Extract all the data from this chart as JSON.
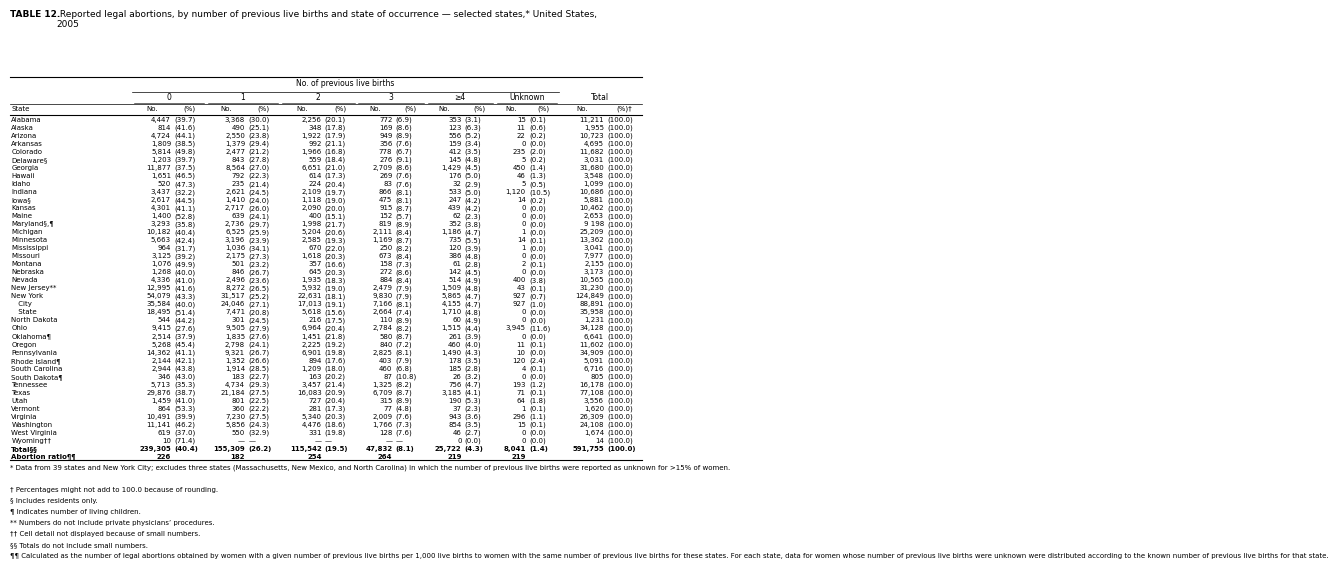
{
  "title_bold": "TABLE 12.",
  "title_rest": " Reported legal abortions, by number of previous live births and state of occurrence — selected states,* United States,\n2005",
  "col_header_top": "No. of previous live births",
  "col_groups": [
    "0",
    "1",
    "2",
    "3",
    "≥4",
    "Unknown",
    "Total"
  ],
  "sub_headers": [
    "No.",
    "(%)",
    "No.",
    "(%)",
    "No.",
    "(%)",
    "No.",
    "(%)",
    "No.",
    "(%)",
    "No.",
    "(%)",
    "No.",
    "(%)†"
  ],
  "state_col_header": "State",
  "rows": [
    [
      "Alabama",
      "4,447",
      "(39.7)",
      "3,368",
      "(30.0)",
      "2,256",
      "(20.1)",
      "772",
      "(6.9)",
      "353",
      "(3.1)",
      "15",
      "(0.1)",
      "11,211",
      "(100.0)"
    ],
    [
      "Alaska",
      "814",
      "(41.6)",
      "490",
      "(25.1)",
      "348",
      "(17.8)",
      "169",
      "(8.6)",
      "123",
      "(6.3)",
      "11",
      "(0.6)",
      "1,955",
      "(100.0)"
    ],
    [
      "Arizona",
      "4,724",
      "(44.1)",
      "2,550",
      "(23.8)",
      "1,922",
      "(17.9)",
      "949",
      "(8.9)",
      "556",
      "(5.2)",
      "22",
      "(0.2)",
      "10,723",
      "(100.0)"
    ],
    [
      "Arkansas",
      "1,809",
      "(38.5)",
      "1,379",
      "(29.4)",
      "992",
      "(21.1)",
      "356",
      "(7.6)",
      "159",
      "(3.4)",
      "0",
      "(0.0)",
      "4,695",
      "(100.0)"
    ],
    [
      "Colorado",
      "5,814",
      "(49.8)",
      "2,477",
      "(21.2)",
      "1,966",
      "(16.8)",
      "778",
      "(6.7)",
      "412",
      "(3.5)",
      "235",
      "(2.0)",
      "11,682",
      "(100.0)"
    ],
    [
      "Delaware§",
      "1,203",
      "(39.7)",
      "843",
      "(27.8)",
      "559",
      "(18.4)",
      "276",
      "(9.1)",
      "145",
      "(4.8)",
      "5",
      "(0.2)",
      "3,031",
      "(100.0)"
    ],
    [
      "Georgia",
      "11,877",
      "(37.5)",
      "8,564",
      "(27.0)",
      "6,651",
      "(21.0)",
      "2,709",
      "(8.6)",
      "1,429",
      "(4.5)",
      "450",
      "(1.4)",
      "31,680",
      "(100.0)"
    ],
    [
      "Hawaii",
      "1,651",
      "(46.5)",
      "792",
      "(22.3)",
      "614",
      "(17.3)",
      "269",
      "(7.6)",
      "176",
      "(5.0)",
      "46",
      "(1.3)",
      "3,548",
      "(100.0)"
    ],
    [
      "Idaho",
      "520",
      "(47.3)",
      "235",
      "(21.4)",
      "224",
      "(20.4)",
      "83",
      "(7.6)",
      "32",
      "(2.9)",
      "5",
      "(0.5)",
      "1,099",
      "(100.0)"
    ],
    [
      "Indiana",
      "3,437",
      "(32.2)",
      "2,621",
      "(24.5)",
      "2,109",
      "(19.7)",
      "866",
      "(8.1)",
      "533",
      "(5.0)",
      "1,120",
      "(10.5)",
      "10,686",
      "(100.0)"
    ],
    [
      "Iowa§",
      "2,617",
      "(44.5)",
      "1,410",
      "(24.0)",
      "1,118",
      "(19.0)",
      "475",
      "(8.1)",
      "247",
      "(4.2)",
      "14",
      "(0.2)",
      "5,881",
      "(100.0)"
    ],
    [
      "Kansas",
      "4,301",
      "(41.1)",
      "2,717",
      "(26.0)",
      "2,090",
      "(20.0)",
      "915",
      "(8.7)",
      "439",
      "(4.2)",
      "0",
      "(0.0)",
      "10,462",
      "(100.0)"
    ],
    [
      "Maine",
      "1,400",
      "(52.8)",
      "639",
      "(24.1)",
      "400",
      "(15.1)",
      "152",
      "(5.7)",
      "62",
      "(2.3)",
      "0",
      "(0.0)",
      "2,653",
      "(100.0)"
    ],
    [
      "Maryland§,¶",
      "3,293",
      "(35.8)",
      "2,736",
      "(29.7)",
      "1,998",
      "(21.7)",
      "819",
      "(8.9)",
      "352",
      "(3.8)",
      "0",
      "(0.0)",
      "9 198",
      "(100.0)"
    ],
    [
      "Michigan",
      "10,182",
      "(40.4)",
      "6,525",
      "(25.9)",
      "5,204",
      "(20.6)",
      "2,111",
      "(8.4)",
      "1,186",
      "(4.7)",
      "1",
      "(0.0)",
      "25,209",
      "(100.0)"
    ],
    [
      "Minnesota",
      "5,663",
      "(42.4)",
      "3,196",
      "(23.9)",
      "2,585",
      "(19.3)",
      "1,169",
      "(8.7)",
      "735",
      "(5.5)",
      "14",
      "(0.1)",
      "13,362",
      "(100.0)"
    ],
    [
      "Mississippi",
      "964",
      "(31.7)",
      "1,036",
      "(34.1)",
      "670",
      "(22.0)",
      "250",
      "(8.2)",
      "120",
      "(3.9)",
      "1",
      "(0.0)",
      "3,041",
      "(100.0)"
    ],
    [
      "Missouri",
      "3,125",
      "(39.2)",
      "2,175",
      "(27.3)",
      "1,618",
      "(20.3)",
      "673",
      "(8.4)",
      "386",
      "(4.8)",
      "0",
      "(0.0)",
      "7,977",
      "(100.0)"
    ],
    [
      "Montana",
      "1,076",
      "(49.9)",
      "501",
      "(23.2)",
      "357",
      "(16.6)",
      "158",
      "(7.3)",
      "61",
      "(2.8)",
      "2",
      "(0.1)",
      "2,155",
      "(100.0)"
    ],
    [
      "Nebraska",
      "1,268",
      "(40.0)",
      "846",
      "(26.7)",
      "645",
      "(20.3)",
      "272",
      "(8.6)",
      "142",
      "(4.5)",
      "0",
      "(0.0)",
      "3,173",
      "(100.0)"
    ],
    [
      "Nevada",
      "4,336",
      "(41.0)",
      "2,496",
      "(23.6)",
      "1,935",
      "(18.3)",
      "884",
      "(8.4)",
      "514",
      "(4.9)",
      "400",
      "(3.8)",
      "10,565",
      "(100.0)"
    ],
    [
      "New Jersey**",
      "12,995",
      "(41.6)",
      "8,272",
      "(26.5)",
      "5,932",
      "(19.0)",
      "2,479",
      "(7.9)",
      "1,509",
      "(4.8)",
      "43",
      "(0.1)",
      "31,230",
      "(100.0)"
    ],
    [
      "New York",
      "54,079",
      "(43.3)",
      "31,517",
      "(25.2)",
      "22,631",
      "(18.1)",
      "9,830",
      "(7.9)",
      "5,865",
      "(4.7)",
      "927",
      "(0.7)",
      "124,849",
      "(100.0)"
    ],
    [
      " City",
      "35,584",
      "(40.0)",
      "24,046",
      "(27.1)",
      "17,013",
      "(19.1)",
      "7,166",
      "(8.1)",
      "4,155",
      "(4.7)",
      "927",
      "(1.0)",
      "88,891",
      "(100.0)"
    ],
    [
      " State",
      "18,495",
      "(51.4)",
      "7,471",
      "(20.8)",
      "5,618",
      "(15.6)",
      "2,664",
      "(7.4)",
      "1,710",
      "(4.8)",
      "0",
      "(0.0)",
      "35,958",
      "(100.0)"
    ],
    [
      "North Dakota",
      "544",
      "(44.2)",
      "301",
      "(24.5)",
      "216",
      "(17.5)",
      "110",
      "(8.9)",
      "60",
      "(4.9)",
      "0",
      "(0.0)",
      "1,231",
      "(100.0)"
    ],
    [
      "Ohio",
      "9,415",
      "(27.6)",
      "9,505",
      "(27.9)",
      "6,964",
      "(20.4)",
      "2,784",
      "(8.2)",
      "1,515",
      "(4.4)",
      "3,945",
      "(11.6)",
      "34,128",
      "(100.0)"
    ],
    [
      "Oklahoma¶",
      "2,514",
      "(37.9)",
      "1,835",
      "(27.6)",
      "1,451",
      "(21.8)",
      "580",
      "(8.7)",
      "261",
      "(3.9)",
      "0",
      "(0.0)",
      "6,641",
      "(100.0)"
    ],
    [
      "Oregon",
      "5,268",
      "(45.4)",
      "2,798",
      "(24.1)",
      "2,225",
      "(19.2)",
      "840",
      "(7.2)",
      "460",
      "(4.0)",
      "11",
      "(0.1)",
      "11,602",
      "(100.0)"
    ],
    [
      "Pennsylvania",
      "14,362",
      "(41.1)",
      "9,321",
      "(26.7)",
      "6,901",
      "(19.8)",
      "2,825",
      "(8.1)",
      "1,490",
      "(4.3)",
      "10",
      "(0.0)",
      "34,909",
      "(100.0)"
    ],
    [
      "Rhode Island¶",
      "2,144",
      "(42.1)",
      "1,352",
      "(26.6)",
      "894",
      "(17.6)",
      "403",
      "(7.9)",
      "178",
      "(3.5)",
      "120",
      "(2.4)",
      "5,091",
      "(100.0)"
    ],
    [
      "South Carolina",
      "2,944",
      "(43.8)",
      "1,914",
      "(28.5)",
      "1,209",
      "(18.0)",
      "460",
      "(6.8)",
      "185",
      "(2.8)",
      "4",
      "(0.1)",
      "6,716",
      "(100.0)"
    ],
    [
      "South Dakota¶",
      "346",
      "(43.0)",
      "183",
      "(22.7)",
      "163",
      "(20.2)",
      "87",
      "(10.8)",
      "26",
      "(3.2)",
      "0",
      "(0.0)",
      "805",
      "(100.0)"
    ],
    [
      "Tennessee",
      "5,713",
      "(35.3)",
      "4,734",
      "(29.3)",
      "3,457",
      "(21.4)",
      "1,325",
      "(8.2)",
      "756",
      "(4.7)",
      "193",
      "(1.2)",
      "16,178",
      "(100.0)"
    ],
    [
      "Texas",
      "29,876",
      "(38.7)",
      "21,184",
      "(27.5)",
      "16,083",
      "(20.9)",
      "6,709",
      "(8.7)",
      "3,185",
      "(4.1)",
      "71",
      "(0.1)",
      "77,108",
      "(100.0)"
    ],
    [
      "Utah",
      "1,459",
      "(41.0)",
      "801",
      "(22.5)",
      "727",
      "(20.4)",
      "315",
      "(8.9)",
      "190",
      "(5.3)",
      "64",
      "(1.8)",
      "3,556",
      "(100.0)"
    ],
    [
      "Vermont",
      "864",
      "(53.3)",
      "360",
      "(22.2)",
      "281",
      "(17.3)",
      "77",
      "(4.8)",
      "37",
      "(2.3)",
      "1",
      "(0.1)",
      "1,620",
      "(100.0)"
    ],
    [
      "Virginia",
      "10,491",
      "(39.9)",
      "7,230",
      "(27.5)",
      "5,340",
      "(20.3)",
      "2,009",
      "(7.6)",
      "943",
      "(3.6)",
      "296",
      "(1.1)",
      "26,309",
      "(100.0)"
    ],
    [
      "Washington",
      "11,141",
      "(46.2)",
      "5,856",
      "(24.3)",
      "4,476",
      "(18.6)",
      "1,766",
      "(7.3)",
      "854",
      "(3.5)",
      "15",
      "(0.1)",
      "24,108",
      "(100.0)"
    ],
    [
      "West Virginia",
      "619",
      "(37.0)",
      "550",
      "(32.9)",
      "331",
      "(19.8)",
      "128",
      "(7.6)",
      "46",
      "(2.7)",
      "0",
      "(0.0)",
      "1,674",
      "(100.0)"
    ],
    [
      "Wyoming††",
      "10",
      "(71.4)",
      "—",
      "—",
      "—",
      "—",
      "—",
      "—",
      "0",
      "(0.0)",
      "0",
      "(0.0)",
      "14",
      "(100.0)"
    ],
    [
      "Total§§",
      "239,305",
      "(40.4)",
      "155,309",
      "(26.2)",
      "115,542",
      "(19.5)",
      "47,832",
      "(8.1)",
      "25,722",
      "(4.3)",
      "8,041",
      "(1.4)",
      "591,755",
      "(100.0)"
    ],
    [
      "Abortion ratio¶¶",
      "226",
      "",
      "182",
      "",
      "254",
      "",
      "264",
      "",
      "219",
      "",
      "219",
      "",
      "",
      ""
    ]
  ],
  "bold_rows": [
    41,
    42
  ],
  "indent_rows": [
    23,
    24
  ],
  "footnotes": [
    [
      "* ",
      "Data from 39 states and New York City; excludes three states (Massachusetts, New Mexico, and North Carolina) in which the number of previous live births were reported as unknown for >15% of women."
    ],
    [
      "† ",
      "Percentages might not add to 100.0 because of rounding."
    ],
    [
      "§ ",
      "Includes residents only."
    ],
    [
      "¶ ",
      "Indicates number of living children."
    ],
    [
      "** ",
      "Numbers do not include private physicians’ procedures."
    ],
    [
      "†† ",
      "Cell detail not displayed because of small numbers."
    ],
    [
      "§§ ",
      "Totals do not include small numbers."
    ],
    [
      "¶¶ ",
      "Calculated as the number of legal abortions obtained by women with a given number of previous live births per 1,000 live births to women with the same number of previous live births for these states. For each state, data for women whose number of previous live births were unknown were distributed according to the known number of previous live births for that state."
    ]
  ],
  "fs_title": 6.5,
  "fs_header": 5.5,
  "fs_sub": 5.0,
  "fs_data": 5.0,
  "fs_fn": 5.0
}
